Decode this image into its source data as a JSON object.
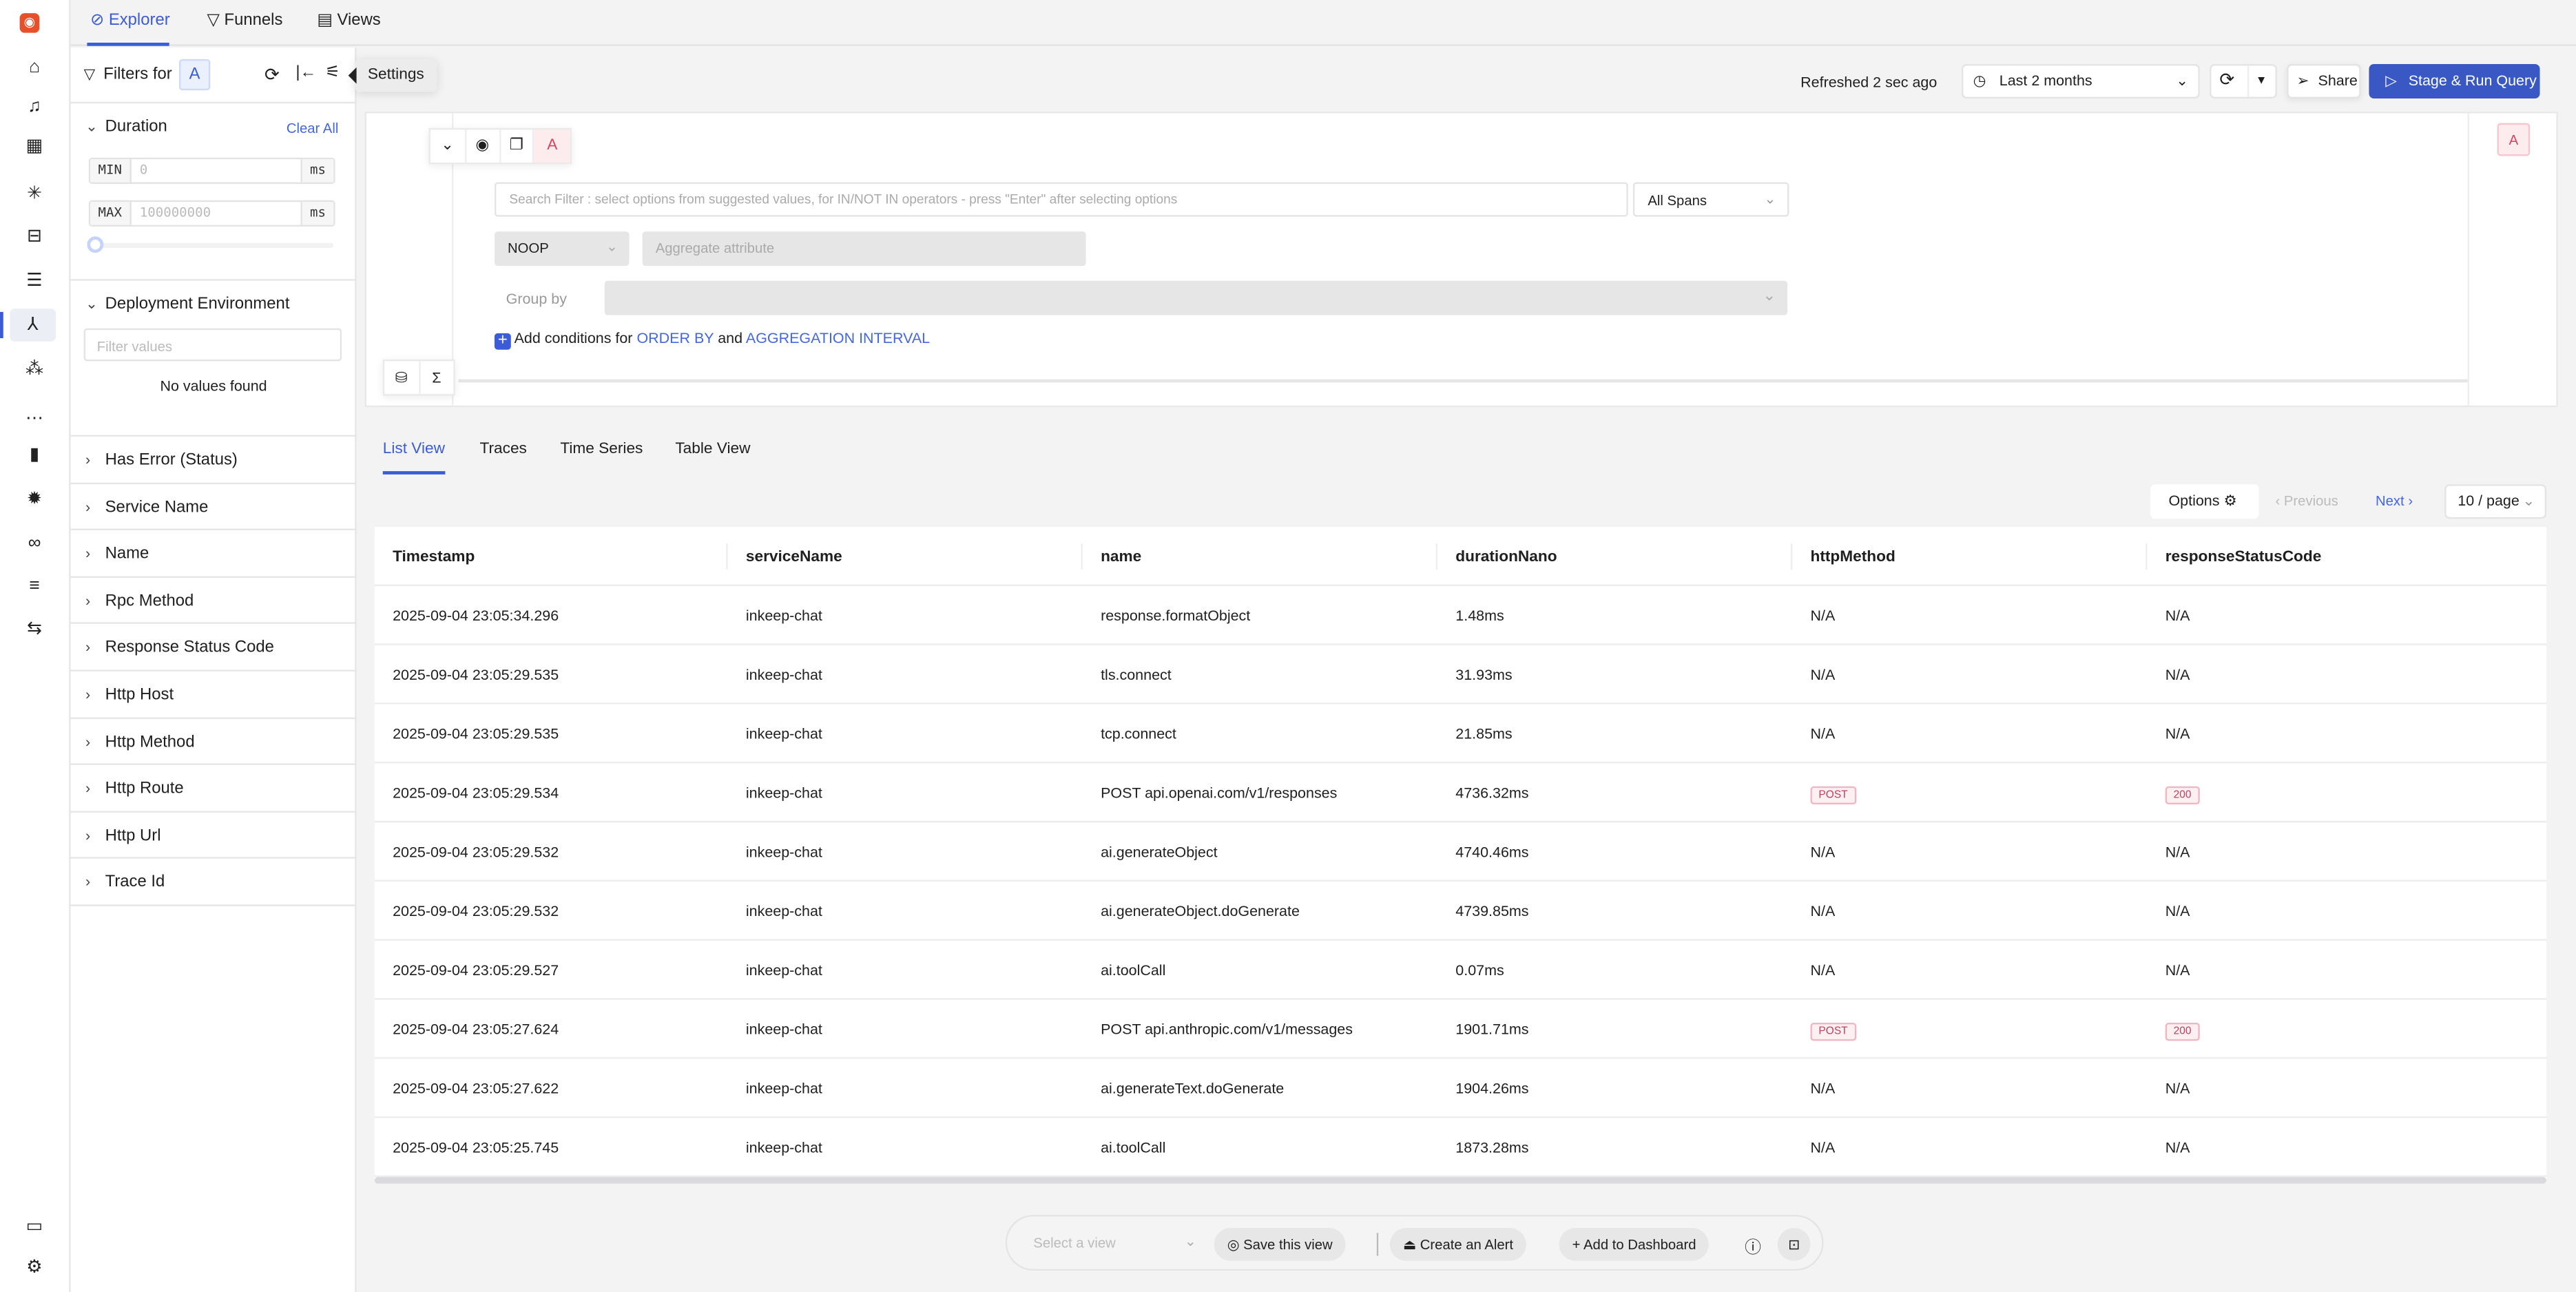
{
  "top_tabs": [
    {
      "label": "Explorer",
      "icon": "compass-icon"
    },
    {
      "label": "Funnels",
      "icon": "funnel-icon"
    },
    {
      "label": "Views",
      "icon": "views-icon"
    }
  ],
  "tooltip": "Settings",
  "filters": {
    "title": "Filters for",
    "query_badge": "A",
    "duration": {
      "label": "Duration",
      "clear_all": "Clear All",
      "min_label": "MIN",
      "min_placeholder": "0",
      "max_label": "MAX",
      "max_placeholder": "100000000",
      "unit": "ms",
      "slider_value": 0
    },
    "deployment": {
      "label": "Deployment Environment",
      "search_placeholder": "Filter values",
      "empty": "No values found"
    },
    "sections": [
      "Has Error (Status)",
      "Service Name",
      "Name",
      "Rpc Method",
      "Response Status Code",
      "Http Host",
      "Http Method",
      "Http Route",
      "Http Url",
      "Trace Id"
    ]
  },
  "toolbar": {
    "refreshed": "Refreshed 2 sec ago",
    "time_range": "Last 2 months",
    "share": "Share",
    "run": "Stage & Run Query"
  },
  "query": {
    "badge": "A",
    "search_placeholder": "Search Filter : select options from suggested values, for IN/NOT IN operators - press \"Enter\" after selecting options",
    "span_scope": "All Spans",
    "aggregate_op": "NOOP",
    "aggregate_placeholder": "Aggregate attribute",
    "group_by_label": "Group by",
    "add_conditions": "Add conditions for",
    "order_by": "ORDER BY",
    "and": "and",
    "agg_interval": "AGGREGATION INTERVAL",
    "right_badge": "A"
  },
  "view_tabs": [
    "List View",
    "Traces",
    "Time Series",
    "Table View"
  ],
  "pagination": {
    "options": "Options",
    "previous": "Previous",
    "next": "Next",
    "page_size": "10 / page"
  },
  "table": {
    "columns": [
      "Timestamp",
      "serviceName",
      "name",
      "durationNano",
      "httpMethod",
      "responseStatusCode"
    ],
    "rows": [
      [
        "2025-09-04 23:05:34.296",
        "inkeep-chat",
        "response.formatObject",
        "1.48ms",
        "N/A",
        "N/A"
      ],
      [
        "2025-09-04 23:05:29.535",
        "inkeep-chat",
        "tls.connect",
        "31.93ms",
        "N/A",
        "N/A"
      ],
      [
        "2025-09-04 23:05:29.535",
        "inkeep-chat",
        "tcp.connect",
        "21.85ms",
        "N/A",
        "N/A"
      ],
      [
        "2025-09-04 23:05:29.534",
        "inkeep-chat",
        "POST api.openai.com/v1/responses",
        "4736.32ms",
        "POST",
        "200"
      ],
      [
        "2025-09-04 23:05:29.532",
        "inkeep-chat",
        "ai.generateObject",
        "4740.46ms",
        "N/A",
        "N/A"
      ],
      [
        "2025-09-04 23:05:29.532",
        "inkeep-chat",
        "ai.generateObject.doGenerate",
        "4739.85ms",
        "N/A",
        "N/A"
      ],
      [
        "2025-09-04 23:05:29.527",
        "inkeep-chat",
        "ai.toolCall",
        "0.07ms",
        "N/A",
        "N/A"
      ],
      [
        "2025-09-04 23:05:27.624",
        "inkeep-chat",
        "POST api.anthropic.com/v1/messages",
        "1901.71ms",
        "POST",
        "200"
      ],
      [
        "2025-09-04 23:05:27.622",
        "inkeep-chat",
        "ai.generateText.doGenerate",
        "1904.26ms",
        "N/A",
        "N/A"
      ],
      [
        "2025-09-04 23:05:25.745",
        "inkeep-chat",
        "ai.toolCall",
        "1873.28ms",
        "N/A",
        "N/A"
      ]
    ]
  },
  "bottom_bar": {
    "select_view_placeholder": "Select a view",
    "save_view": "Save this view",
    "create_alert": "Create an Alert",
    "add_dashboard": "Add to Dashboard"
  },
  "colors": {
    "accent": "#3c5bd6",
    "logo": "#e8502a",
    "tag_border": "#f1b6c4"
  }
}
